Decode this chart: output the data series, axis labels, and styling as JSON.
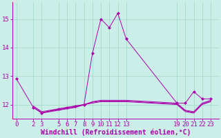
{
  "background_color": "#cceee8",
  "grid_color": "#aaddcc",
  "line_color": "#aa00aa",
  "marker_color": "#aa00aa",
  "xlabel": "Windchill (Refroidissement éolien,°C)",
  "xlim": [
    -0.5,
    24
  ],
  "ylim": [
    11.5,
    15.6
  ],
  "yticks": [
    12,
    13,
    14,
    15
  ],
  "xticks": [
    0,
    2,
    3,
    5,
    6,
    7,
    8,
    9,
    10,
    11,
    12,
    13,
    19,
    20,
    21,
    22,
    23
  ],
  "series": [
    {
      "x": [
        0,
        2,
        3,
        5,
        6,
        7,
        8,
        9,
        10,
        11,
        12,
        13,
        19,
        20,
        21,
        22,
        23
      ],
      "y": [
        12.9,
        11.9,
        11.7,
        11.85,
        11.9,
        11.95,
        12.0,
        13.8,
        15.0,
        14.7,
        15.2,
        14.3,
        12.05,
        12.05,
        12.45,
        12.2,
        12.2
      ],
      "has_markers": true
    },
    {
      "x": [
        2,
        3,
        5,
        6,
        7,
        8,
        9,
        10,
        11,
        12,
        13,
        19,
        20,
        21,
        22,
        23
      ],
      "y": [
        11.9,
        11.7,
        11.8,
        11.85,
        11.9,
        12.0,
        12.05,
        12.1,
        12.1,
        12.1,
        12.1,
        12.0,
        11.75,
        11.7,
        12.0,
        12.1
      ],
      "has_markers": false
    },
    {
      "x": [
        2,
        3,
        5,
        6,
        7,
        8,
        9,
        10,
        11,
        12,
        13,
        19,
        20,
        21,
        22,
        23
      ],
      "y": [
        11.95,
        11.75,
        11.85,
        11.9,
        11.95,
        12.0,
        12.1,
        12.15,
        12.15,
        12.15,
        12.15,
        12.05,
        11.8,
        11.75,
        12.05,
        12.15
      ],
      "has_markers": false
    },
    {
      "x": [
        2,
        3,
        5,
        6,
        7,
        8,
        9,
        10,
        11,
        12,
        13,
        19,
        20,
        21,
        22,
        23
      ],
      "y": [
        11.9,
        11.72,
        11.82,
        11.87,
        11.92,
        11.98,
        12.08,
        12.12,
        12.12,
        12.12,
        12.12,
        12.02,
        11.78,
        11.72,
        12.02,
        12.12
      ],
      "has_markers": false
    }
  ],
  "font_size": 6.5,
  "xlabel_fontsize": 7
}
